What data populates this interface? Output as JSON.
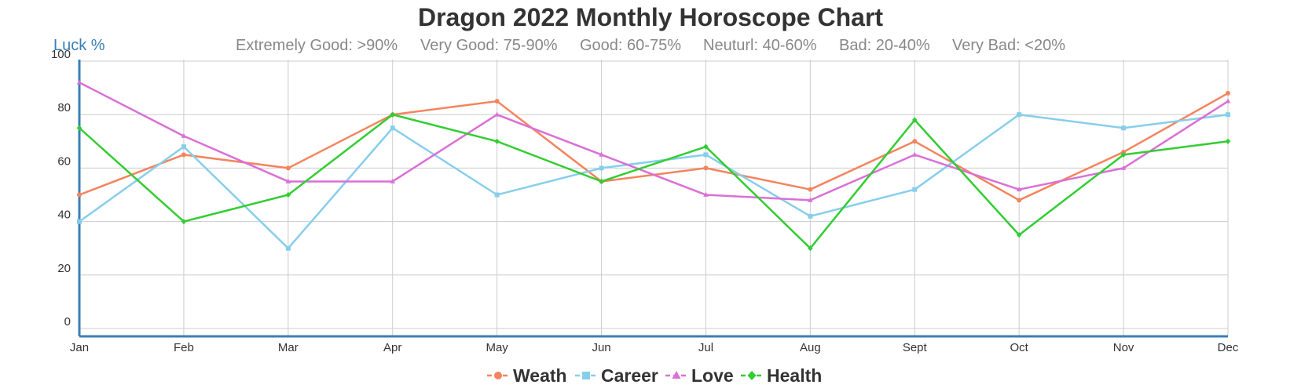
{
  "chart_data": {
    "type": "line",
    "title": "Dragon 2022 Monthly Horoscope Chart",
    "ylabel": "Luck %",
    "xlabel": "",
    "scale_labels": [
      "Extremely Good: >90%",
      "Very Good: 75-90%",
      "Good: 60-75%",
      "Neuturl: 40-60%",
      "Bad: 20-40%",
      "Very Bad: <20%"
    ],
    "categories": [
      "Jan",
      "Feb",
      "Mar",
      "Apr",
      "May",
      "Jun",
      "Jul",
      "Aug",
      "Sept",
      "Oct",
      "Nov",
      "Dec"
    ],
    "ylim": [
      0,
      100
    ],
    "yticks": [
      0,
      20,
      40,
      60,
      80,
      100
    ],
    "grid": true,
    "legend_position": "bottom-center",
    "series": [
      {
        "name": "Weath",
        "color": "#f4845f",
        "marker": "circle",
        "values": [
          50,
          65,
          60,
          80,
          85,
          55,
          60,
          52,
          70,
          48,
          66,
          88
        ]
      },
      {
        "name": "Career",
        "color": "#87ceeb",
        "marker": "square",
        "values": [
          40,
          68,
          30,
          75,
          50,
          60,
          65,
          42,
          52,
          80,
          75,
          80
        ]
      },
      {
        "name": "Love",
        "color": "#da70d6",
        "marker": "triangle",
        "values": [
          92,
          72,
          55,
          55,
          80,
          65,
          50,
          48,
          65,
          52,
          60,
          85
        ]
      },
      {
        "name": "Health",
        "color": "#32cd32",
        "marker": "diamond",
        "values": [
          75,
          40,
          50,
          80,
          70,
          55,
          68,
          30,
          78,
          35,
          65,
          70
        ]
      }
    ]
  }
}
